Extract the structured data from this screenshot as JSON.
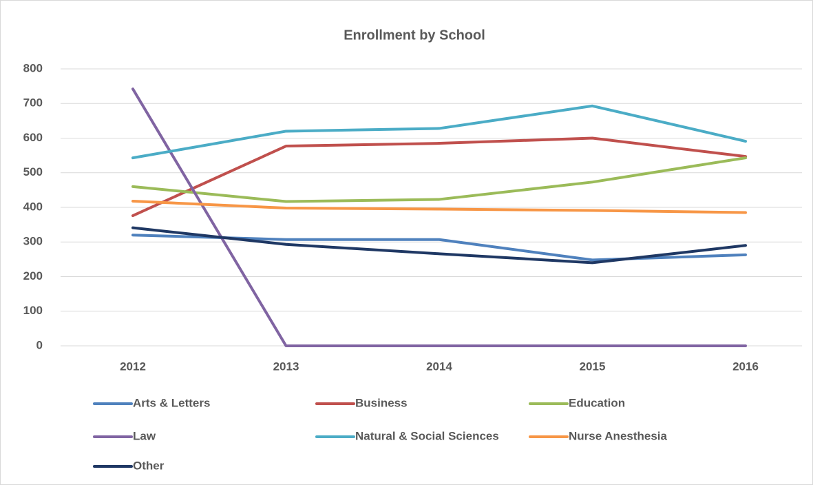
{
  "chart_data": {
    "type": "line",
    "title": "Enrollment by  School",
    "categories": [
      "2012",
      "2013",
      "2014",
      "2015",
      "2016"
    ],
    "series": [
      {
        "name": "Arts & Letters",
        "color": "#4f81bd",
        "values": [
          320,
          307,
          307,
          248,
          263
        ]
      },
      {
        "name": "Business",
        "color": "#c0504d",
        "values": [
          376,
          577,
          585,
          600,
          547
        ]
      },
      {
        "name": "Education",
        "color": "#9bbb59",
        "values": [
          460,
          417,
          423,
          473,
          543
        ]
      },
      {
        "name": "Law",
        "color": "#8064a2",
        "values": [
          742,
          0,
          0,
          0,
          0
        ]
      },
      {
        "name": "Natural & Social Sciences",
        "color": "#4bacc6",
        "values": [
          543,
          620,
          628,
          693,
          591
        ]
      },
      {
        "name": "Nurse Anesthesia",
        "color": "#f79646",
        "values": [
          418,
          398,
          395,
          391,
          385
        ]
      },
      {
        "name": "Other",
        "color": "#1f3864",
        "values": [
          341,
          293,
          266,
          240,
          290
        ]
      }
    ],
    "ylim": [
      0,
      800
    ],
    "yticks": [
      0,
      100,
      200,
      300,
      400,
      500,
      600,
      700,
      800
    ],
    "grid": true,
    "legend": "bottom"
  }
}
